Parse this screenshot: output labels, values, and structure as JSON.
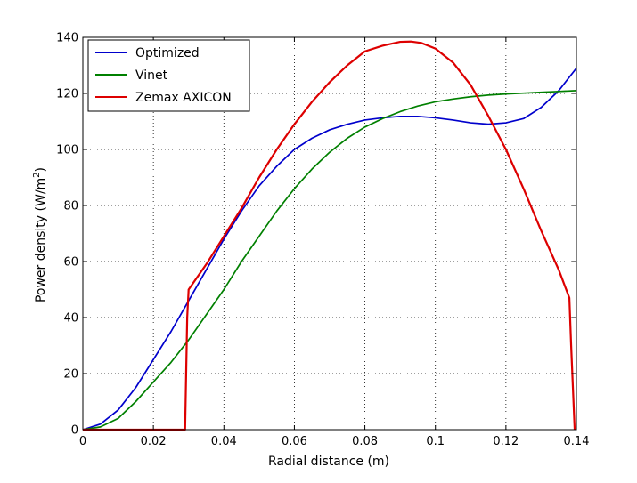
{
  "chart_data": {
    "type": "line",
    "xlabel": "Radial distance (m)",
    "ylabel": "Power density (W/m",
    "ylabel_sup": "2",
    "ylabel_end": ")",
    "xlim": [
      0,
      0.14
    ],
    "ylim": [
      0,
      140
    ],
    "xticks": [
      0,
      0.02,
      0.04,
      0.06,
      0.08,
      0.1,
      0.12,
      0.14
    ],
    "xtick_labels": [
      "0",
      "0.02",
      "0.04",
      "0.06",
      "0.08",
      "0.1",
      "0.12",
      "0.14"
    ],
    "yticks": [
      0,
      20,
      40,
      60,
      80,
      100,
      120,
      140
    ],
    "ytick_labels": [
      "0",
      "20",
      "40",
      "60",
      "80",
      "100",
      "120",
      "140"
    ],
    "grid": true,
    "legend": "top-left",
    "series": [
      {
        "name": "Optimized",
        "color": "#0000cc",
        "x": [
          0,
          0.005,
          0.01,
          0.015,
          0.02,
          0.025,
          0.03,
          0.035,
          0.04,
          0.045,
          0.05,
          0.055,
          0.06,
          0.065,
          0.07,
          0.075,
          0.08,
          0.085,
          0.09,
          0.095,
          0.1,
          0.105,
          0.11,
          0.115,
          0.12,
          0.125,
          0.13,
          0.135,
          0.14
        ],
        "y": [
          0,
          2,
          7,
          15,
          25,
          35,
          46,
          57,
          68,
          78,
          87,
          94,
          100,
          104,
          107,
          109,
          110.5,
          111.3,
          111.8,
          111.8,
          111.3,
          110.5,
          109.5,
          109,
          109.5,
          111,
          115,
          121,
          129
        ]
      },
      {
        "name": "Vinet",
        "color": "#008000",
        "x": [
          0,
          0.005,
          0.01,
          0.015,
          0.02,
          0.025,
          0.03,
          0.035,
          0.04,
          0.045,
          0.05,
          0.055,
          0.06,
          0.065,
          0.07,
          0.075,
          0.08,
          0.085,
          0.09,
          0.095,
          0.1,
          0.105,
          0.11,
          0.115,
          0.12,
          0.125,
          0.13,
          0.135,
          0.14
        ],
        "y": [
          0,
          1,
          4,
          10,
          17,
          24,
          32,
          41,
          50,
          60,
          69,
          78,
          86,
          93,
          99,
          104,
          108,
          111,
          113.5,
          115.5,
          117,
          118,
          118.8,
          119.4,
          119.8,
          120.1,
          120.4,
          120.7,
          121
        ]
      },
      {
        "name": "Zemax AXICON",
        "color": "#dd0000",
        "x": [
          0,
          0.029,
          0.0293,
          0.0296,
          0.03,
          0.035,
          0.04,
          0.045,
          0.05,
          0.055,
          0.06,
          0.065,
          0.07,
          0.075,
          0.08,
          0.085,
          0.09,
          0.093,
          0.096,
          0.1,
          0.105,
          0.11,
          0.115,
          0.12,
          0.125,
          0.13,
          0.135,
          0.138,
          0.1385,
          0.139,
          0.1395
        ],
        "y": [
          0,
          0,
          20,
          40,
          50,
          59,
          69,
          79,
          90,
          100,
          109,
          117,
          124,
          130,
          135,
          137,
          138.4,
          138.5,
          138,
          136,
          131,
          123,
          112,
          100,
          86,
          71,
          57,
          47,
          30,
          15,
          0
        ]
      }
    ]
  }
}
